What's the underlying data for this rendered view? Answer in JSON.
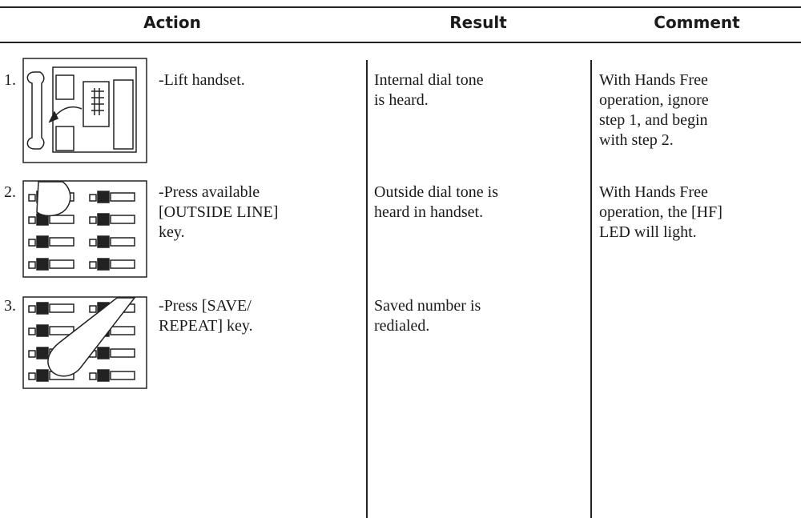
{
  "header": {
    "columns": [
      "Action",
      "Result",
      "Comment"
    ]
  },
  "table": {
    "rows": [
      {
        "step": "1.",
        "action": [
          "-Lift handset."
        ],
        "result": [
          "Internal dial tone",
          "is heard."
        ],
        "comment": [
          "With Hands Free",
          "operation, ignore",
          "step 1, and begin",
          "with step 2."
        ]
      },
      {
        "step": "2.",
        "action": [
          "-Press available",
          "[OUTSIDE LINE]",
          "key."
        ],
        "result": [
          "Outside dial tone is",
          "heard in handset."
        ],
        "comment": [
          "With Hands Free",
          "operation, the [HF]",
          "LED will light."
        ]
      },
      {
        "step": "3.",
        "action": [
          "-Press [SAVE/",
          "REPEAT] key."
        ],
        "result": [
          "Saved number is",
          "redialed."
        ],
        "comment": []
      }
    ]
  }
}
